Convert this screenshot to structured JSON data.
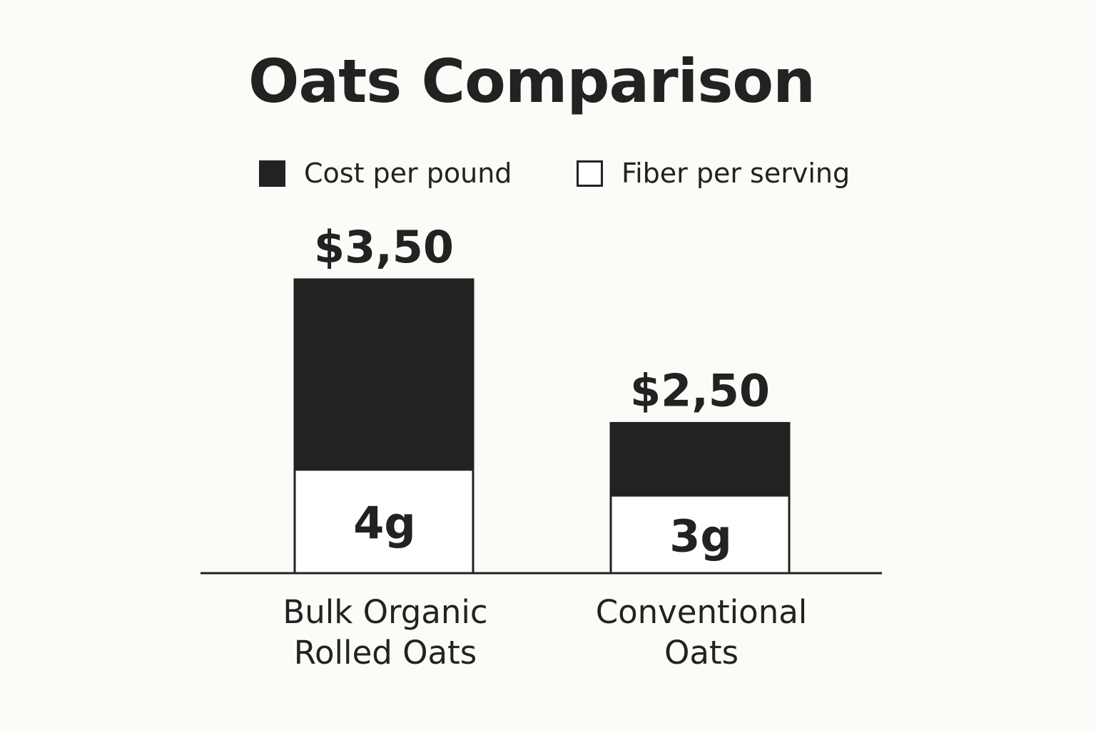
{
  "chart_data": {
    "type": "bar",
    "stacked": true,
    "title": "Oats Comparison",
    "legend_position": "top-center",
    "categories": [
      "Bulk Organic Rolled Oats",
      "Conventional Oats"
    ],
    "category_label_lines": [
      [
        "Bulk Organic",
        "Rolled Oats"
      ],
      [
        "Conventional",
        "Oats"
      ]
    ],
    "series": [
      {
        "name": "Fiber per serving",
        "swatch": "hollow",
        "color": "#ffffff",
        "values": [
          4,
          3
        ],
        "labels": [
          "4g",
          "3g"
        ]
      },
      {
        "name": "Cost per pound",
        "swatch": "filled",
        "color": "#222222",
        "values": [
          3.5,
          2.5
        ],
        "labels": [
          "$3,50",
          "$2,50"
        ]
      }
    ],
    "xlabel": "",
    "ylabel": "",
    "grid": false,
    "axis_color": "#222222"
  }
}
